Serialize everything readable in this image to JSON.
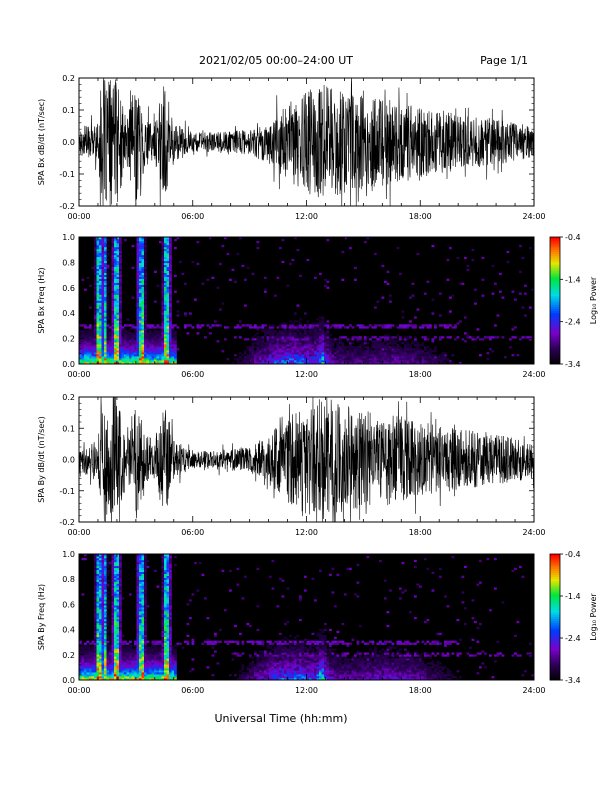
{
  "header": {
    "title": "2021/02/05  00:00–24:00 UT",
    "page": "Page 1/1"
  },
  "xlabel": "Universal Time (hh:mm)",
  "xticks": [
    "00:00",
    "06:00",
    "12:00",
    "18:00",
    "24:00"
  ],
  "colorbar": {
    "label": "Log₁₀ Power",
    "ticks": [
      "-0.4",
      "-1.4",
      "-2.4",
      "-3.4"
    ],
    "range": [
      -3.4,
      -0.4
    ]
  },
  "chart_data": [
    {
      "type": "line",
      "ylabel": "SPA Bx dB/dt (nT/sec)",
      "xlim": [
        0,
        24
      ],
      "ylim": [
        -0.2,
        0.2
      ],
      "yticks": [
        "0.2",
        "0.1",
        "0.0",
        "-0.1",
        "-0.2"
      ],
      "envelope": {
        "hours": [
          0,
          1,
          1.2,
          2,
          2.5,
          3,
          3.5,
          4,
          4.5,
          5,
          6,
          7,
          8,
          9,
          10,
          11,
          12,
          13,
          14,
          15,
          16,
          17,
          18,
          19,
          20,
          21,
          22,
          23,
          24
        ],
        "amplitude": [
          0.04,
          0.06,
          0.2,
          0.2,
          0.07,
          0.2,
          0.08,
          0.06,
          0.2,
          0.06,
          0.03,
          0.03,
          0.035,
          0.04,
          0.07,
          0.12,
          0.16,
          0.18,
          0.16,
          0.15,
          0.14,
          0.12,
          0.11,
          0.1,
          0.09,
          0.08,
          0.07,
          0.06,
          0.05
        ]
      }
    },
    {
      "type": "heatmap",
      "ylabel": "SPA Bx Freq (Hz)",
      "xlim": [
        0,
        24
      ],
      "ylim": [
        0,
        1
      ],
      "yticks": [
        "1.0",
        "0.8",
        "0.6",
        "0.4",
        "0.2",
        "0.0"
      ],
      "zrange": [
        -3.4,
        -0.4
      ]
    },
    {
      "type": "line",
      "ylabel": "SPA By dB/dt (nT/sec)",
      "xlim": [
        0,
        24
      ],
      "ylim": [
        -0.2,
        0.2
      ],
      "yticks": [
        "0.2",
        "0.1",
        "0.0",
        "-0.1",
        "-0.2"
      ],
      "envelope": {
        "hours": [
          0,
          1,
          1.2,
          2,
          2.5,
          3,
          3.5,
          4,
          4.5,
          5,
          6,
          7,
          8,
          9,
          10,
          11,
          12,
          13,
          14,
          15,
          16,
          17,
          18,
          19,
          20,
          21,
          22,
          23,
          24
        ],
        "amplitude": [
          0.04,
          0.06,
          0.2,
          0.2,
          0.07,
          0.2,
          0.08,
          0.06,
          0.2,
          0.06,
          0.03,
          0.03,
          0.035,
          0.04,
          0.08,
          0.14,
          0.18,
          0.2,
          0.18,
          0.16,
          0.15,
          0.14,
          0.12,
          0.11,
          0.1,
          0.09,
          0.08,
          0.07,
          0.06
        ]
      }
    },
    {
      "type": "heatmap",
      "ylabel": "SPA By Freq (Hz)",
      "xlim": [
        0,
        24
      ],
      "ylim": [
        0,
        1
      ],
      "yticks": [
        "1.0",
        "0.8",
        "0.6",
        "0.4",
        "0.2",
        "0.0"
      ],
      "zrange": [
        -3.4,
        -0.4
      ]
    }
  ]
}
